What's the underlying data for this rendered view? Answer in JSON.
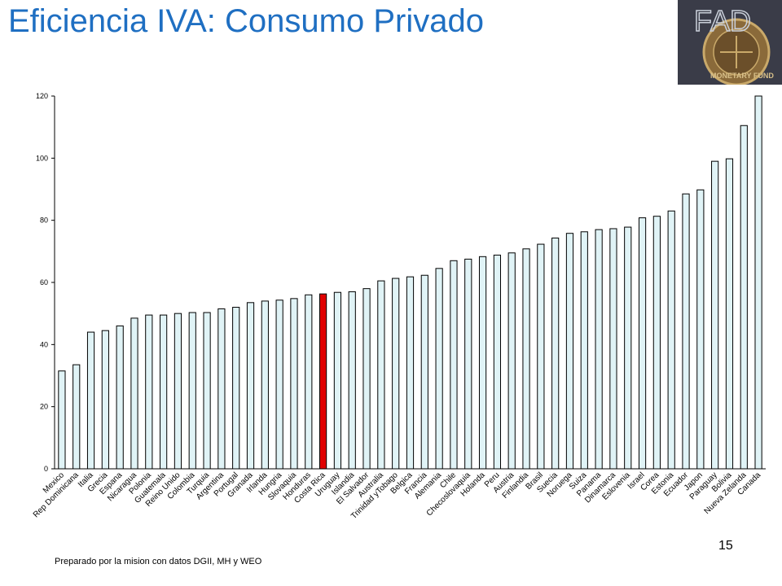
{
  "slide": {
    "title": "Eficiencia IVA: Consumo Privado",
    "page_number": "15",
    "source_note": "Preparado por  la mision con datos DGII, MH y WEO"
  },
  "logo": {
    "icon": "imf-seal-logo",
    "text": "FAD",
    "seal_text": "MONETARY FUND",
    "colors": {
      "bg": "#2a3550",
      "seal": "#8a6a3a",
      "text": "#c9cfd9"
    }
  },
  "colors": {
    "bar_fill": "#e0f3f6",
    "bar_highlight": "#e00000",
    "bar_stroke": "#000000"
  },
  "chart_data": {
    "type": "bar",
    "title": "",
    "xlabel": "",
    "ylabel": "",
    "ylim": [
      0,
      120
    ],
    "yticks": [
      0,
      20,
      40,
      60,
      80,
      100,
      120
    ],
    "grid": false,
    "highlight": "Costa Rica",
    "categories": [
      "Mexico",
      "Rep Dominicana",
      "Italia",
      "Grecia",
      "Espana",
      "Nicaragua",
      "Polonia",
      "Guatemala",
      "Reino Unido",
      "Colombia",
      "Turquia",
      "Argentina",
      "Portugal",
      "Granada",
      "Irlanda",
      "Hungria",
      "Slovaquia",
      "Honduras",
      "Costa Rica",
      "Uruguay",
      "Islandia",
      "El Salvador",
      "Australia",
      "Trinidad yTobago",
      "Belgica",
      "Francia",
      "Alemania",
      "Chile",
      "Checoslovaquia",
      "Holanda",
      "Peru",
      "Austria",
      "Finlandia",
      "Brasil",
      "Suecia",
      "Noruega",
      "Suiza",
      "Panama",
      "Dinamarca",
      "Eslovenia",
      "Israel",
      "Corea",
      "Estonia",
      "Ecuador",
      "Japon",
      "Paraguay",
      "Bolivia",
      "Nueva Zelanda",
      "Canada"
    ],
    "values": [
      31.5,
      33.5,
      44,
      44.5,
      46,
      48.5,
      49.5,
      49.5,
      50,
      50.3,
      50.3,
      51.5,
      52,
      53.5,
      54,
      54.3,
      54.8,
      56,
      56.3,
      56.8,
      57,
      58,
      60.5,
      61.3,
      61.8,
      62.3,
      64.5,
      67,
      67.5,
      68.3,
      68.8,
      69.5,
      70.8,
      72.3,
      74.3,
      75.8,
      76.3,
      77,
      77.3,
      77.8,
      80.8,
      81.3,
      83,
      88.5,
      89.8,
      99,
      99.8,
      110.5,
      120
    ]
  }
}
